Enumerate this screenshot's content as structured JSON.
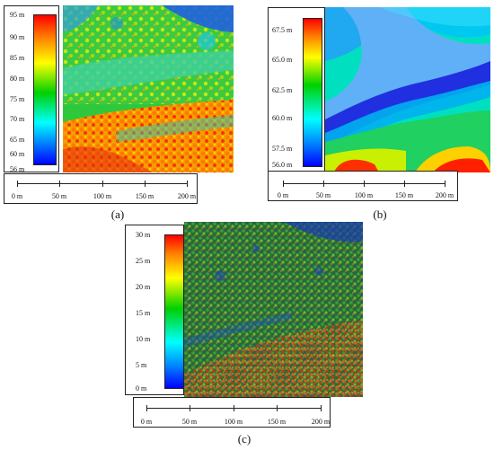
{
  "panels": [
    {
      "caption": "(a)",
      "legend_ticks": [
        "95 m",
        "90 m",
        "85 m",
        "80 m",
        "75 m",
        "70 m",
        "65 m",
        "60 m",
        "56 m"
      ],
      "scale_ticks": [
        "0 m",
        "50 m",
        "100 m",
        "150 m",
        "200 m"
      ]
    },
    {
      "caption": "(b)",
      "legend_ticks": [
        "67.5 m",
        "65.0 m",
        "62.5 m",
        "60.0 m",
        "57.5 m",
        "56.0 m"
      ],
      "scale_ticks": [
        "0 m",
        "50 m",
        "100 m",
        "150 m",
        "200 m"
      ]
    },
    {
      "caption": "(c)",
      "legend_ticks": [
        "30 m",
        "25 m",
        "20 m",
        "15 m",
        "10 m",
        "5 m",
        "0 m"
      ],
      "scale_ticks": [
        "0 m",
        "50 m",
        "100 m",
        "150 m",
        "200 m"
      ]
    }
  ],
  "colors": {
    "ramp_high": "#ff0000",
    "ramp_mid_high": "#ffff00",
    "ramp_mid": "#00d000",
    "ramp_mid_low": "#00ffff",
    "ramp_low": "#0000ff"
  }
}
